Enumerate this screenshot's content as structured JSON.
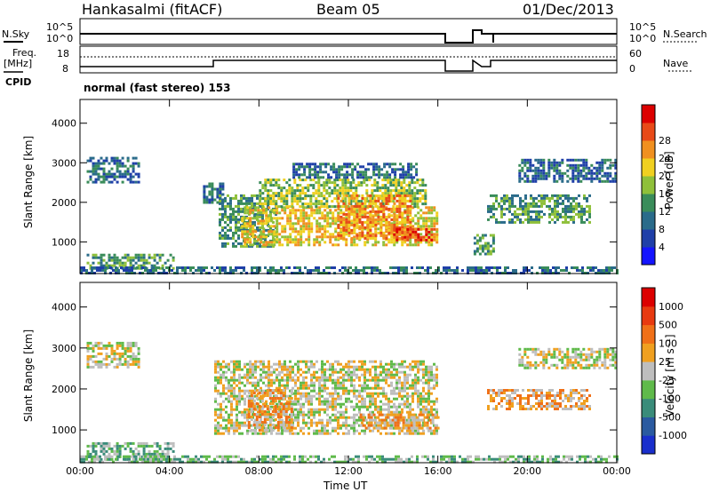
{
  "header": {
    "title": "Hankasalmi (fitACF)",
    "beam": "Beam 05",
    "date": "01/Dec/2013"
  },
  "params": {
    "nsky_label": "N.Sky",
    "nsearch_label": "N.Search",
    "freq_label_1": "Freq.",
    "freq_label_2": "[MHz]",
    "nave_label": "Nave",
    "cpid_label": "CPID",
    "cpid_value": "normal (fast stereo) 153",
    "nsky_ticks": [
      "10^5",
      "10^0"
    ],
    "nsearch_ticks": [
      "10^5",
      "10^0"
    ],
    "freq_ticks": [
      "18",
      "8"
    ],
    "nave_ticks": [
      "60",
      "0"
    ]
  },
  "chart_data": [
    {
      "type": "heatmap",
      "name": "power",
      "ylabel": "Slant Range [km]",
      "xlabel": "",
      "x_ticks": [
        "00:00",
        "04:00",
        "08:00",
        "12:00",
        "16:00",
        "20:00",
        "00:00"
      ],
      "y_ticks": [
        "1000",
        "2000",
        "3000",
        "4000"
      ],
      "ylim": [
        200,
        4600
      ],
      "xlim": [
        0,
        24
      ],
      "colorbar": {
        "label": "Power [dB]",
        "ticks": [
          "4",
          "8",
          "12",
          "16",
          "20",
          "24",
          "28"
        ],
        "colors": [
          "#1414ff",
          "#1f3fa8",
          "#2a6b8a",
          "#3a8c5a",
          "#8fc03a",
          "#f0d020",
          "#f09020",
          "#e84a18",
          "#dc0000"
        ]
      },
      "regions": [
        {
          "t0": 0.3,
          "t1": 2.6,
          "r0": 2500,
          "r1": 3150,
          "level": 2
        },
        {
          "t0": 0.3,
          "t1": 4.2,
          "r0": 300,
          "r1": 700,
          "level": 3
        },
        {
          "t0": 5.5,
          "t1": 6.4,
          "r0": 2000,
          "r1": 2500,
          "level": 2
        },
        {
          "t0": 6.2,
          "t1": 8.8,
          "r0": 900,
          "r1": 2200,
          "level": 3
        },
        {
          "t0": 7.2,
          "t1": 16.0,
          "r0": 900,
          "r1": 1900,
          "level": 5
        },
        {
          "t0": 8.0,
          "t1": 15.5,
          "r0": 1900,
          "r1": 2600,
          "level": 4
        },
        {
          "t0": 9.5,
          "t1": 15.0,
          "r0": 2600,
          "r1": 3000,
          "level": 2
        },
        {
          "t0": 11.5,
          "t1": 14.8,
          "r0": 1100,
          "r1": 2200,
          "level": 6
        },
        {
          "t0": 14.0,
          "t1": 16.0,
          "r0": 1050,
          "r1": 1350,
          "level": 7
        },
        {
          "t0": 18.2,
          "t1": 22.8,
          "r0": 1500,
          "r1": 2200,
          "level": 3
        },
        {
          "t0": 19.6,
          "t1": 23.9,
          "r0": 2500,
          "r1": 3100,
          "level": 2
        },
        {
          "t0": 17.6,
          "t1": 18.5,
          "r0": 700,
          "r1": 1200,
          "level": 3
        },
        {
          "t0": 0.0,
          "t1": 24.0,
          "r0": 200,
          "r1": 380,
          "level": 2
        }
      ]
    },
    {
      "type": "heatmap",
      "name": "velocity",
      "ylabel": "Slant Range [km]",
      "xlabel": "Time UT",
      "x_ticks": [
        "00:00",
        "04:00",
        "08:00",
        "12:00",
        "16:00",
        "20:00",
        "00:00"
      ],
      "y_ticks": [
        "1000",
        "2000",
        "3000",
        "4000"
      ],
      "ylim": [
        200,
        4600
      ],
      "xlim": [
        0,
        24
      ],
      "colorbar": {
        "label": "Velocity [m s⁻¹]",
        "ticks": [
          "1000",
          "500",
          "100",
          "25",
          "-25",
          "-100",
          "-500",
          "-1000"
        ],
        "colors": [
          "#1a2fcc",
          "#2a5aa0",
          "#3a8c7a",
          "#5fba4a",
          "#bebebe",
          "#f0a020",
          "#f07018",
          "#e83a10",
          "#dc0000"
        ]
      },
      "regions": [
        {
          "t0": 0.3,
          "t1": 2.6,
          "r0": 2500,
          "r1": 3150,
          "level": 4
        },
        {
          "t0": 0.3,
          "t1": 4.2,
          "r0": 300,
          "r1": 700,
          "level": 3
        },
        {
          "t0": 6.0,
          "t1": 16.0,
          "r0": 900,
          "r1": 2700,
          "level": 4
        },
        {
          "t0": 7.5,
          "t1": 9.5,
          "r0": 1000,
          "r1": 2000,
          "level": 5
        },
        {
          "t0": 12.5,
          "t1": 16.0,
          "r0": 1050,
          "r1": 1400,
          "level": 5
        },
        {
          "t0": 18.2,
          "t1": 22.8,
          "r0": 1500,
          "r1": 2000,
          "level": 5
        },
        {
          "t0": 19.6,
          "t1": 23.9,
          "r0": 2500,
          "r1": 3000,
          "level": 4
        },
        {
          "t0": 0.0,
          "t1": 24.0,
          "r0": 200,
          "r1": 380,
          "level": 3
        }
      ]
    }
  ]
}
